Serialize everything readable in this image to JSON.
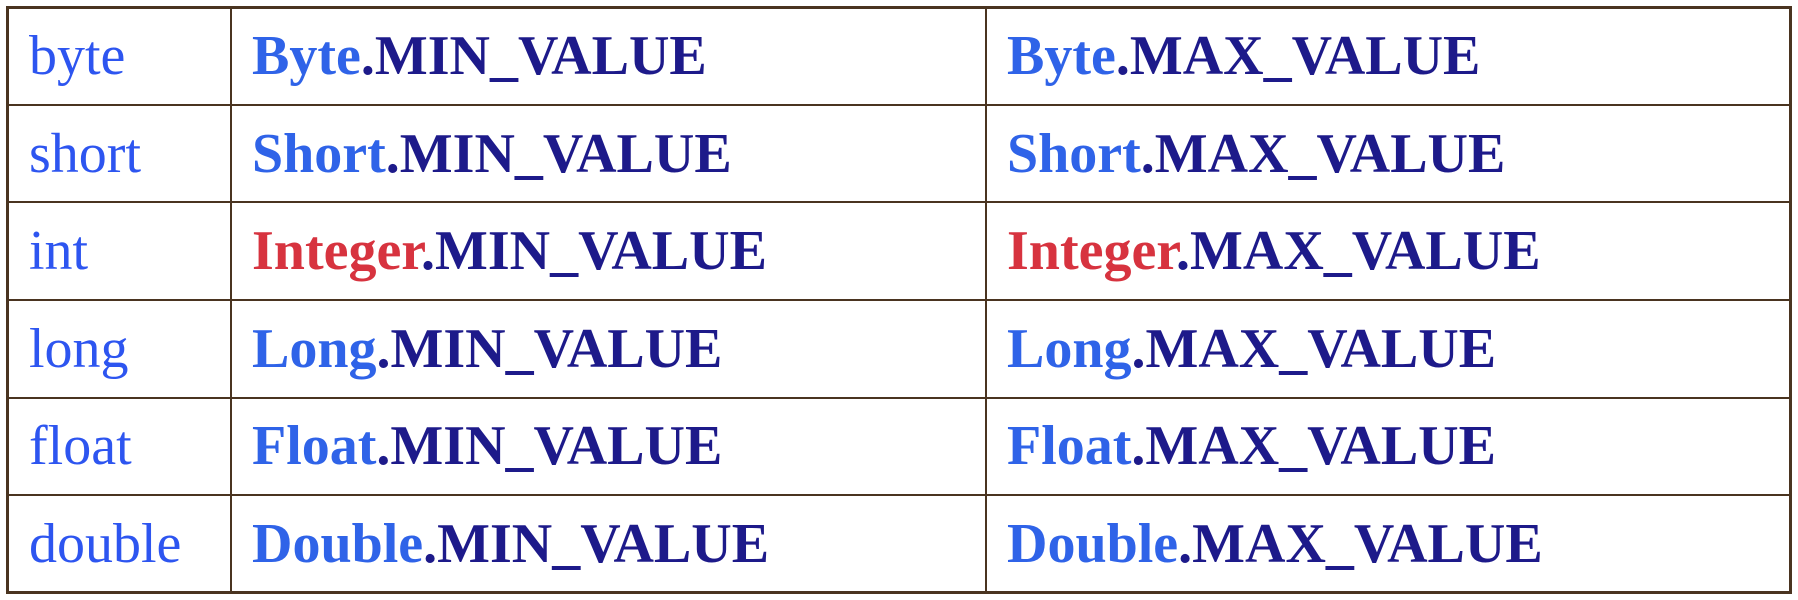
{
  "table": {
    "rows": [
      {
        "primitive": "byte",
        "wrapper": "Byte",
        "highlight": false,
        "min_member": ".MIN_VALUE",
        "max_member": ".MAX_VALUE"
      },
      {
        "primitive": "short",
        "wrapper": "Short",
        "highlight": false,
        "min_member": ".MIN_VALUE",
        "max_member": ".MAX_VALUE"
      },
      {
        "primitive": "int",
        "wrapper": "Integer",
        "highlight": true,
        "min_member": ".MIN_VALUE",
        "max_member": ".MAX_VALUE"
      },
      {
        "primitive": "long",
        "wrapper": "Long",
        "highlight": false,
        "min_member": ".MIN_VALUE",
        "max_member": ".MAX_VALUE"
      },
      {
        "primitive": "float",
        "wrapper": "Float",
        "highlight": false,
        "min_member": ".MIN_VALUE",
        "max_member": ".MAX_VALUE"
      },
      {
        "primitive": "double",
        "wrapper": "Double",
        "highlight": false,
        "min_member": ".MIN_VALUE",
        "max_member": ".MAX_VALUE"
      }
    ]
  },
  "colors": {
    "primitive_text": "#2d55f0",
    "wrapper_text": "#2f63e8",
    "wrapper_highlight_text": "#d7333f",
    "member_text": "#1d1a8a",
    "border": "#4a3420",
    "background": "#ffffff"
  }
}
